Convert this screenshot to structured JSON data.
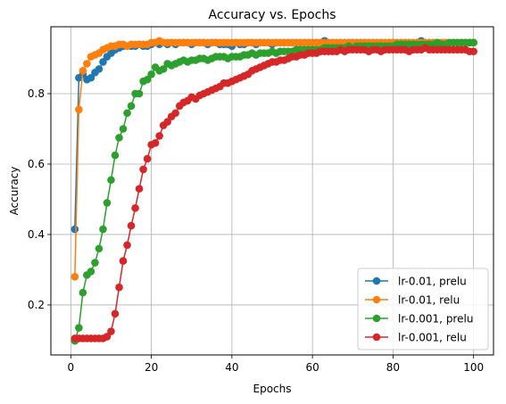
{
  "chart_data": {
    "type": "line",
    "title": "Accuracy vs. Epochs",
    "xlabel": "Epochs",
    "ylabel": "Accuracy",
    "xlim": [
      -4.95,
      104.95
    ],
    "ylim": [
      0.058,
      0.99
    ],
    "xticks": [
      0,
      20,
      40,
      60,
      80,
      100
    ],
    "yticks": [
      0.2,
      0.4,
      0.6,
      0.8
    ],
    "grid": true,
    "legend_position": "lower-right",
    "series": [
      {
        "name": "lr-0.01, prelu",
        "color": "#1f77b4",
        "x": [
          1,
          2,
          3,
          4,
          5,
          6,
          7,
          8,
          9,
          10,
          11,
          12,
          13,
          14,
          15,
          16,
          17,
          18,
          19,
          20,
          21,
          22,
          23,
          24,
          25,
          26,
          27,
          28,
          29,
          30,
          31,
          32,
          33,
          34,
          35,
          36,
          37,
          38,
          39,
          40,
          41,
          42,
          43,
          44,
          45,
          46,
          47,
          48,
          49,
          50,
          51,
          52,
          53,
          54,
          55,
          56,
          57,
          58,
          59,
          60,
          61,
          62,
          63,
          64,
          65,
          66,
          67,
          68,
          69,
          70,
          71,
          72,
          73,
          74,
          75,
          76,
          77,
          78,
          79,
          80,
          81,
          82,
          83,
          84,
          85,
          86,
          87,
          88,
          89,
          90,
          91,
          92,
          93,
          94,
          95,
          96,
          97,
          98,
          99,
          100
        ],
        "y": [
          0.415,
          0.845,
          0.855,
          0.84,
          0.845,
          0.86,
          0.87,
          0.89,
          0.905,
          0.915,
          0.925,
          0.93,
          0.935,
          0.935,
          0.935,
          0.935,
          0.94,
          0.935,
          0.935,
          0.94,
          0.945,
          0.94,
          0.945,
          0.94,
          0.945,
          0.94,
          0.945,
          0.945,
          0.945,
          0.94,
          0.945,
          0.945,
          0.945,
          0.94,
          0.945,
          0.945,
          0.94,
          0.94,
          0.94,
          0.935,
          0.945,
          0.94,
          0.94,
          0.945,
          0.945,
          0.94,
          0.945,
          0.945,
          0.945,
          0.94,
          0.945,
          0.945,
          0.945,
          0.945,
          0.945,
          0.945,
          0.945,
          0.945,
          0.945,
          0.945,
          0.945,
          0.945,
          0.95,
          0.945,
          0.945,
          0.945,
          0.945,
          0.945,
          0.945,
          0.945,
          0.945,
          0.945,
          0.945,
          0.945,
          0.945,
          0.945,
          0.945,
          0.945,
          0.945,
          0.945,
          0.945,
          0.945,
          0.945,
          0.945,
          0.945,
          0.945,
          0.95,
          0.945,
          0.945,
          0.945,
          0.945,
          0.945,
          0.945,
          0.945,
          0.945,
          0.945,
          0.945,
          0.945,
          0.945,
          0.945
        ]
      },
      {
        "name": "lr-0.01, relu",
        "color": "#ff7f0e",
        "x": [
          1,
          2,
          3,
          4,
          5,
          6,
          7,
          8,
          9,
          10,
          11,
          12,
          13,
          14,
          15,
          16,
          17,
          18,
          19,
          20,
          21,
          22,
          23,
          24,
          25,
          26,
          27,
          28,
          29,
          30,
          31,
          32,
          33,
          34,
          35,
          36,
          37,
          38,
          39,
          40,
          41,
          42,
          43,
          44,
          45,
          46,
          47,
          48,
          49,
          50,
          51,
          52,
          53,
          54,
          55,
          56,
          57,
          58,
          59,
          60,
          61,
          62,
          63,
          64,
          65,
          66,
          67,
          68,
          69,
          70,
          71,
          72,
          73,
          74,
          75,
          76,
          77,
          78,
          79,
          80,
          81,
          82,
          83,
          84,
          85,
          86,
          87,
          88,
          89,
          90,
          91,
          92,
          93,
          94,
          95,
          96,
          97,
          98,
          99,
          100
        ],
        "y": [
          0.28,
          0.755,
          0.865,
          0.885,
          0.905,
          0.91,
          0.915,
          0.925,
          0.93,
          0.935,
          0.935,
          0.94,
          0.94,
          0.935,
          0.94,
          0.94,
          0.94,
          0.94,
          0.94,
          0.945,
          0.945,
          0.95,
          0.945,
          0.945,
          0.945,
          0.945,
          0.945,
          0.945,
          0.945,
          0.945,
          0.945,
          0.945,
          0.945,
          0.945,
          0.945,
          0.945,
          0.945,
          0.945,
          0.945,
          0.945,
          0.945,
          0.945,
          0.945,
          0.945,
          0.945,
          0.945,
          0.945,
          0.945,
          0.945,
          0.945,
          0.945,
          0.945,
          0.945,
          0.945,
          0.945,
          0.945,
          0.945,
          0.945,
          0.945,
          0.945,
          0.945,
          0.945,
          0.945,
          0.945,
          0.945,
          0.945,
          0.945,
          0.945,
          0.945,
          0.945,
          0.945,
          0.945,
          0.945,
          0.945,
          0.945,
          0.945,
          0.945,
          0.945,
          0.945,
          0.945,
          0.945,
          0.945,
          0.945,
          0.945,
          0.945,
          0.945,
          0.945,
          0.945,
          0.945,
          0.945,
          0.945,
          0.945,
          0.945,
          0.945,
          0.945,
          0.945,
          0.945,
          0.945,
          0.945,
          0.945
        ]
      },
      {
        "name": "lr-0.001, prelu",
        "color": "#2ca02c",
        "x": [
          1,
          2,
          3,
          4,
          5,
          6,
          7,
          8,
          9,
          10,
          11,
          12,
          13,
          14,
          15,
          16,
          17,
          18,
          19,
          20,
          21,
          22,
          23,
          24,
          25,
          26,
          27,
          28,
          29,
          30,
          31,
          32,
          33,
          34,
          35,
          36,
          37,
          38,
          39,
          40,
          41,
          42,
          43,
          44,
          45,
          46,
          47,
          48,
          49,
          50,
          51,
          52,
          53,
          54,
          55,
          56,
          57,
          58,
          59,
          60,
          61,
          62,
          63,
          64,
          65,
          66,
          67,
          68,
          69,
          70,
          71,
          72,
          73,
          74,
          75,
          76,
          77,
          78,
          79,
          80,
          81,
          82,
          83,
          84,
          85,
          86,
          87,
          88,
          89,
          90,
          91,
          92,
          93,
          94,
          95,
          96,
          97,
          98,
          99,
          100
        ],
        "y": [
          0.098,
          0.135,
          0.235,
          0.285,
          0.295,
          0.32,
          0.36,
          0.415,
          0.49,
          0.555,
          0.625,
          0.675,
          0.7,
          0.745,
          0.765,
          0.8,
          0.8,
          0.835,
          0.84,
          0.855,
          0.875,
          0.865,
          0.87,
          0.885,
          0.88,
          0.885,
          0.89,
          0.895,
          0.89,
          0.895,
          0.895,
          0.9,
          0.9,
          0.895,
          0.9,
          0.905,
          0.905,
          0.905,
          0.9,
          0.905,
          0.905,
          0.905,
          0.91,
          0.91,
          0.915,
          0.91,
          0.915,
          0.915,
          0.915,
          0.92,
          0.915,
          0.92,
          0.92,
          0.92,
          0.92,
          0.925,
          0.925,
          0.925,
          0.925,
          0.925,
          0.925,
          0.925,
          0.93,
          0.93,
          0.93,
          0.93,
          0.93,
          0.93,
          0.935,
          0.93,
          0.935,
          0.935,
          0.935,
          0.935,
          0.935,
          0.935,
          0.935,
          0.935,
          0.935,
          0.935,
          0.94,
          0.94,
          0.94,
          0.94,
          0.94,
          0.94,
          0.94,
          0.94,
          0.94,
          0.94,
          0.945,
          0.94,
          0.94,
          0.945,
          0.945,
          0.945,
          0.945,
          0.945,
          0.945,
          0.945
        ]
      },
      {
        "name": "lr-0.001, relu",
        "color": "#d62728",
        "x": [
          1,
          2,
          3,
          4,
          5,
          6,
          7,
          8,
          9,
          10,
          11,
          12,
          13,
          14,
          15,
          16,
          17,
          18,
          19,
          20,
          21,
          22,
          23,
          24,
          25,
          26,
          27,
          28,
          29,
          30,
          31,
          32,
          33,
          34,
          35,
          36,
          37,
          38,
          39,
          40,
          41,
          42,
          43,
          44,
          45,
          46,
          47,
          48,
          49,
          50,
          51,
          52,
          53,
          54,
          55,
          56,
          57,
          58,
          59,
          60,
          61,
          62,
          63,
          64,
          65,
          66,
          67,
          68,
          69,
          70,
          71,
          72,
          73,
          74,
          75,
          76,
          77,
          78,
          79,
          80,
          81,
          82,
          83,
          84,
          85,
          86,
          87,
          88,
          89,
          90,
          91,
          92,
          93,
          94,
          95,
          96,
          97,
          98,
          99,
          100
        ],
        "y": [
          0.105,
          0.105,
          0.105,
          0.105,
          0.105,
          0.105,
          0.105,
          0.105,
          0.11,
          0.125,
          0.175,
          0.25,
          0.325,
          0.37,
          0.425,
          0.475,
          0.53,
          0.585,
          0.615,
          0.655,
          0.66,
          0.68,
          0.71,
          0.72,
          0.735,
          0.745,
          0.765,
          0.775,
          0.78,
          0.79,
          0.785,
          0.795,
          0.8,
          0.805,
          0.81,
          0.815,
          0.82,
          0.83,
          0.83,
          0.835,
          0.84,
          0.845,
          0.85,
          0.855,
          0.865,
          0.87,
          0.875,
          0.88,
          0.885,
          0.89,
          0.89,
          0.895,
          0.895,
          0.9,
          0.905,
          0.905,
          0.91,
          0.91,
          0.915,
          0.915,
          0.915,
          0.92,
          0.92,
          0.92,
          0.92,
          0.92,
          0.925,
          0.92,
          0.925,
          0.925,
          0.925,
          0.925,
          0.925,
          0.92,
          0.925,
          0.925,
          0.92,
          0.925,
          0.925,
          0.925,
          0.925,
          0.925,
          0.925,
          0.92,
          0.925,
          0.925,
          0.925,
          0.93,
          0.925,
          0.925,
          0.925,
          0.925,
          0.925,
          0.925,
          0.925,
          0.925,
          0.925,
          0.925,
          0.92,
          0.92
        ]
      }
    ]
  }
}
